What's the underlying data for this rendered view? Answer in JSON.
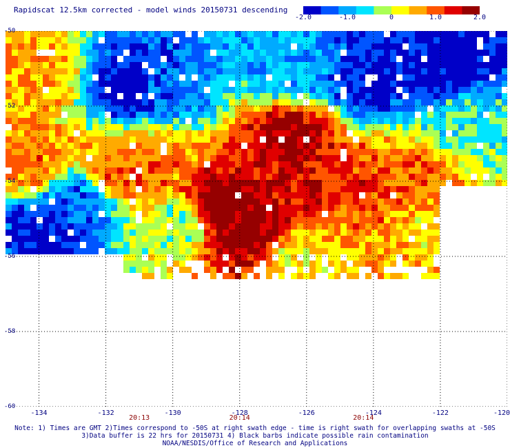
{
  "header": {
    "title": "Rapidscat 12.5km corrected - model winds 20150731 descending"
  },
  "colorbar": {
    "min": -2.0,
    "max": 2.0,
    "tick_labels": [
      "-2.0",
      "-1.0",
      "0",
      "1.0",
      "2.0"
    ],
    "tick_values": [
      -2.0,
      -1.0,
      0,
      1.0,
      2.0
    ],
    "colors": [
      "#0000c8",
      "#0055ff",
      "#00aaff",
      "#00e5ff",
      "#aaff55",
      "#ffff00",
      "#ffaa00",
      "#ff5500",
      "#e00000",
      "#960000"
    ]
  },
  "chart_data": {
    "type": "heatmap",
    "title": "Rapidscat 12.5km corrected - model winds 20150731 descending",
    "xlim": [
      -135,
      -120
    ],
    "ylim": [
      -60,
      -50
    ],
    "x_ticks": [
      -134,
      -132,
      -130,
      -128,
      -126,
      -124,
      -122,
      -120
    ],
    "x_tick_labels": [
      "-134",
      "-132",
      "-130",
      "-128",
      "-126",
      "-124",
      "-122",
      "-120"
    ],
    "y_ticks": [
      -50,
      -52,
      -54,
      -56,
      -58,
      -60
    ],
    "y_tick_labels": [
      "-50",
      "-52",
      "-54",
      "-56",
      "-58",
      "-60"
    ],
    "grid": true,
    "time_labels": [
      {
        "text": "20:13",
        "lon": -131.0
      },
      {
        "text": "20:14",
        "lon": -128.0
      },
      {
        "text": "20:14",
        "lon": -124.3
      }
    ],
    "field_bounds": {
      "lon_min": -135,
      "lon_max": -120,
      "lat_south": -56.0,
      "lat_south_partial": -56.6
    },
    "field_features": [
      {
        "lon": -128.5,
        "lat": -54.7,
        "value": 2.0
      },
      {
        "lon": -127.9,
        "lat": -55.3,
        "value": 1.9
      },
      {
        "lon": -126.5,
        "lat": -52.8,
        "value": 1.7
      },
      {
        "lon": -126.2,
        "lat": -54.3,
        "value": 1.5
      },
      {
        "lon": -124.6,
        "lat": -54.2,
        "value": 1.2
      },
      {
        "lon": -123.0,
        "lat": -54.0,
        "value": 1.0
      },
      {
        "lon": -130.6,
        "lat": -53.6,
        "value": 0.8
      },
      {
        "lon": -131.5,
        "lat": -53.8,
        "value": 0.9
      },
      {
        "lon": -125.0,
        "lat": -55.2,
        "value": 0.8
      },
      {
        "lon": -134.0,
        "lat": -51.2,
        "value": 0.6
      },
      {
        "lon": -134.3,
        "lat": -53.5,
        "value": 0.8
      },
      {
        "lon": -133.7,
        "lat": -55.2,
        "value": -1.8
      },
      {
        "lon": -132.8,
        "lat": -54.6,
        "value": -1.3
      },
      {
        "lon": -131.3,
        "lat": -51.4,
        "value": -1.9
      },
      {
        "lon": -130.0,
        "lat": -51.5,
        "value": -1.2
      },
      {
        "lon": -126.5,
        "lat": -51.1,
        "value": -0.9
      },
      {
        "lon": -124.2,
        "lat": -51.3,
        "value": -1.8
      },
      {
        "lon": -121.6,
        "lat": -51.0,
        "value": -2.0
      },
      {
        "lon": -121.2,
        "lat": -52.3,
        "value": -0.5
      },
      {
        "lon": -129.8,
        "lat": -55.2,
        "value": -0.2
      },
      {
        "lon": -126.0,
        "lat": -56.0,
        "value": 0.2
      },
      {
        "lon": -122.5,
        "lat": -55.3,
        "value": 0.4
      }
    ]
  },
  "footer": {
    "note_line1": "Note: 1) Times are GMT 2)Times correspond to -50S at right swath edge - time is right swath for overlapping swaths at -50S",
    "note_line2": "3)Data buffer is 22 hrs for 20150731 4) Black barbs indicate possible rain contamination",
    "credit": "NOAA/NESDIS/Office of Research and Applications"
  }
}
